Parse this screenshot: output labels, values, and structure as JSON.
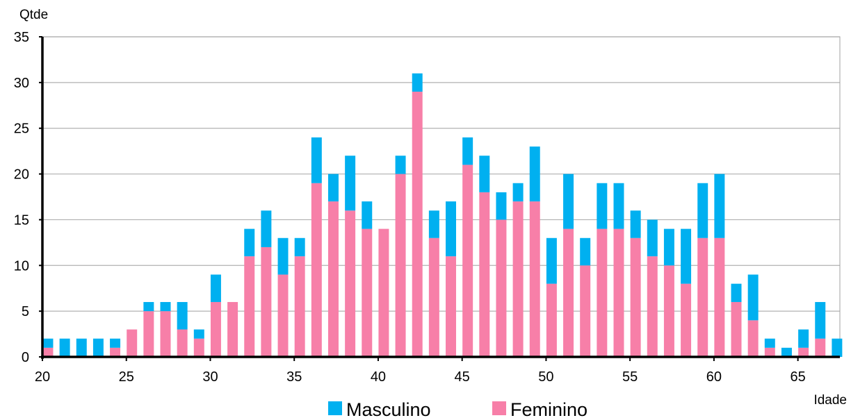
{
  "chart_data": {
    "type": "bar",
    "stacked": true,
    "ylabel": "Qtde",
    "xlabel": "Idade",
    "ylim": [
      0,
      35
    ],
    "xlim": [
      20,
      67.5
    ],
    "yticks": [
      0,
      5,
      10,
      15,
      20,
      25,
      30,
      35
    ],
    "xticks": [
      20,
      25,
      30,
      35,
      40,
      45,
      50,
      55,
      60,
      65
    ],
    "grid": "horizontal",
    "legend_position": "bottom-center",
    "categories": [
      20,
      21,
      22,
      23,
      24,
      25,
      26,
      27,
      28,
      29,
      30,
      31,
      32,
      33,
      34,
      35,
      36,
      37,
      38,
      39,
      40,
      41,
      42,
      43,
      44,
      45,
      46,
      47,
      48,
      49,
      50,
      51,
      52,
      53,
      54,
      55,
      56,
      57,
      58,
      59,
      60,
      61,
      62,
      63,
      64,
      65,
      66,
      67
    ],
    "series": [
      {
        "name": "Masculino",
        "color": "#00b0f0",
        "values": [
          1,
          2,
          2,
          2,
          1,
          0,
          1,
          1,
          3,
          1,
          3,
          0,
          3,
          4,
          4,
          2,
          5,
          3,
          6,
          3,
          0,
          2,
          2,
          3,
          6,
          3,
          4,
          3,
          2,
          6,
          5,
          6,
          3,
          5,
          5,
          3,
          4,
          4,
          6,
          6,
          7,
          2,
          5,
          1,
          1,
          2,
          4,
          2
        ]
      },
      {
        "name": "Feminino",
        "color": "#f77fa8",
        "values": [
          1,
          0,
          0,
          0,
          1,
          3,
          5,
          5,
          3,
          2,
          6,
          6,
          11,
          12,
          9,
          11,
          19,
          17,
          16,
          14,
          14,
          20,
          29,
          13,
          11,
          21,
          18,
          15,
          17,
          17,
          8,
          14,
          10,
          14,
          14,
          13,
          11,
          10,
          8,
          13,
          13,
          6,
          4,
          1,
          0,
          1,
          2,
          0
        ]
      }
    ]
  }
}
